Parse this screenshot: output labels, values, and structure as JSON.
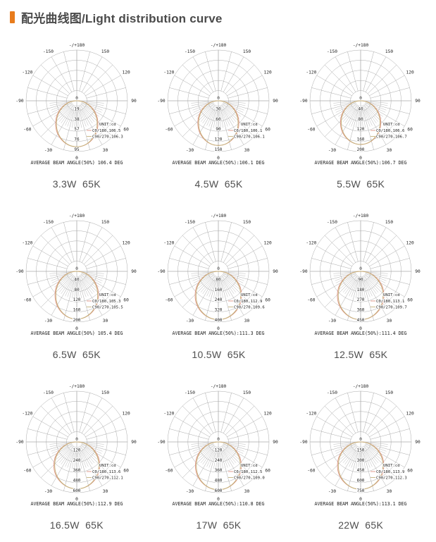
{
  "header": {
    "title": "配光曲线图/Light distribution curve"
  },
  "theme": {
    "accent_orange": "#e87c1c",
    "title_color": "#4a4a4a",
    "caption_color": "#4f4f4f",
    "grid_color": "#aaaaaa",
    "curve_c0_color": "#dd9383",
    "curve_c90_color": "#c6b27c",
    "chart_text_color": "#222222"
  },
  "polar_common": {
    "ring_fractions": [
      0.2,
      0.4,
      0.6,
      0.8,
      1.0
    ],
    "center_label": "0",
    "angle_ticks": [
      {
        "deg": 180,
        "label": "-/+180"
      },
      {
        "deg": -150,
        "label": "-150"
      },
      {
        "deg": 150,
        "label": "150"
      },
      {
        "deg": -120,
        "label": "-120"
      },
      {
        "deg": 120,
        "label": "120"
      },
      {
        "deg": -90,
        "label": "-90"
      },
      {
        "deg": 90,
        "label": "90"
      },
      {
        "deg": -60,
        "label": "-60"
      },
      {
        "deg": 60,
        "label": "60"
      },
      {
        "deg": -30,
        "label": "-30"
      },
      {
        "deg": 30,
        "label": "30"
      },
      {
        "deg": 0,
        "label": "0"
      }
    ]
  },
  "chart_data": [
    {
      "id": "chart-3-3w",
      "type": "polar",
      "power_label": "3.3W  65K",
      "unit": "cd",
      "rings": [
        19,
        38,
        57,
        76,
        95
      ],
      "legend_title": "UNIT:cd",
      "legend_c0": "C0/180,106.5",
      "legend_c90": "C90/270,106.3",
      "c0_180": 106.5,
      "c90_270": 106.3,
      "avg_beam_angle_deg": 106.4,
      "peak_cd_approx": 86,
      "caption": "AVERAGE BEAM ANGLE(50%) 106.4 DEG"
    },
    {
      "id": "chart-4-5w",
      "type": "polar",
      "power_label": "4.5W  65K",
      "unit": "cd",
      "rings": [
        30,
        60,
        90,
        120,
        150
      ],
      "legend_title": "UNIT:cd",
      "legend_c0": "C0/180,106.1",
      "legend_c90": "C90/270,106.1",
      "c0_180": 106.1,
      "c90_270": 106.1,
      "avg_beam_angle_deg": 106.1,
      "peak_cd_approx": 132,
      "caption": "AVERAGE BEAM ANGLE(50%):106.1 DEG"
    },
    {
      "id": "chart-5-5w",
      "type": "polar",
      "power_label": "5.5W  65K",
      "unit": "cd",
      "rings": [
        40,
        80,
        120,
        160,
        200
      ],
      "legend_title": "UNIT:cd",
      "legend_c0": "C0/180,106.6",
      "legend_c90": "C90/270,106.7",
      "c0_180": 106.6,
      "c90_270": 106.7,
      "avg_beam_angle_deg": 106.7,
      "peak_cd_approx": 172,
      "caption": "AVERAGE BEAM ANGLE(50%):106.7 DEG"
    },
    {
      "id": "chart-6-5w",
      "type": "polar",
      "power_label": "6.5W  65K",
      "unit": "cd",
      "rings": [
        40,
        80,
        120,
        160,
        200
      ],
      "legend_title": "UNIT:cd",
      "legend_c0": "C0/180,105.3",
      "legend_c90": "C90/270,105.5",
      "c0_180": 105.3,
      "c90_270": 105.5,
      "avg_beam_angle_deg": 105.4,
      "peak_cd_approx": 188,
      "caption": "AVERAGE BEAM ANGLE(50%) 105.4 DEG"
    },
    {
      "id": "chart-10-5w",
      "type": "polar",
      "power_label": "10.5W  65K",
      "unit": "cd",
      "rings": [
        80,
        160,
        240,
        320,
        400
      ],
      "legend_title": "UNIT:cd",
      "legend_c0": "C0/180,112.9",
      "legend_c90": "C90/270,109.6",
      "c0_180": 112.9,
      "c90_270": 109.6,
      "avg_beam_angle_deg": 111.3,
      "peak_cd_approx": 380,
      "caption": "AVERAGE BEAM ANGLE(50%):111.3 DEG"
    },
    {
      "id": "chart-12-5w",
      "type": "polar",
      "power_label": "12.5W  65K",
      "unit": "cd",
      "rings": [
        90,
        180,
        270,
        360,
        450
      ],
      "legend_title": "UNIT:cd",
      "legend_c0": "C0/180,113.1",
      "legend_c90": "C90/270,109.7",
      "c0_180": 113.1,
      "c90_270": 109.7,
      "avg_beam_angle_deg": 111.4,
      "peak_cd_approx": 428,
      "caption": "AVERAGE BEAM ANGLE(50%):111.4 DEG"
    },
    {
      "id": "chart-16-5w",
      "type": "polar",
      "power_label": "16.5W  65K",
      "unit": "cd",
      "rings": [
        120,
        240,
        360,
        480,
        600
      ],
      "legend_title": "UNIT:cd",
      "legend_c0": "C0/180,113.6",
      "legend_c90": "C90/270,112.1",
      "c0_180": 113.6,
      "c90_270": 112.1,
      "avg_beam_angle_deg": 112.9,
      "peak_cd_approx": 555,
      "caption": "AVERAGE BEAM ANGLE(50%):112.9 DEG"
    },
    {
      "id": "chart-17w",
      "type": "polar",
      "power_label": "17W  65K",
      "unit": "cd",
      "rings": [
        120,
        240,
        360,
        480,
        600
      ],
      "legend_title": "UNIT:cd",
      "legend_c0": "C0/180,112.5",
      "legend_c90": "C90/270,109.0",
      "c0_180": 112.5,
      "c90_270": 109.0,
      "avg_beam_angle_deg": 110.8,
      "peak_cd_approx": 565,
      "caption": "AVERAGE BEAM ANGLE(50%):110.8 DEG"
    },
    {
      "id": "chart-22w",
      "type": "polar",
      "power_label": "22W  65K",
      "unit": "cd",
      "rings": [
        150,
        300,
        450,
        600,
        750
      ],
      "legend_title": "UNIT:cd",
      "legend_c0": "C0/180,113.9",
      "legend_c90": "C90/270,112.3",
      "c0_180": 113.9,
      "c90_270": 112.3,
      "avg_beam_angle_deg": 113.1,
      "peak_cd_approx": 700,
      "caption": "AVERAGE BEAM ANGLE(50%):113.1 DEG"
    }
  ]
}
